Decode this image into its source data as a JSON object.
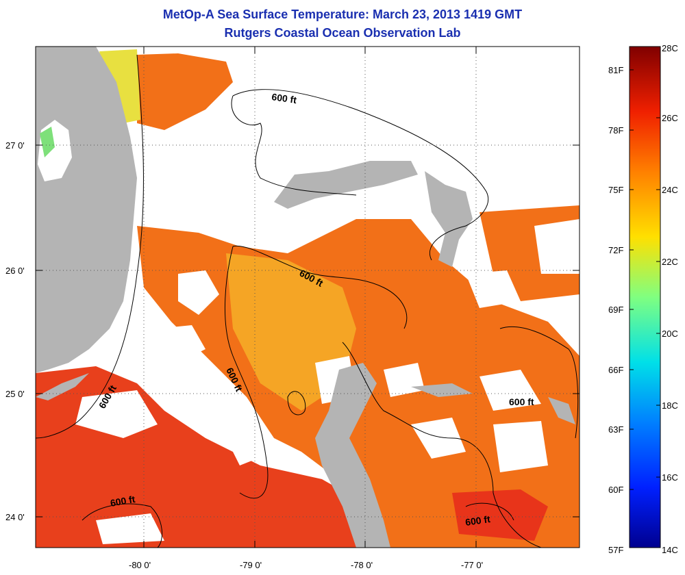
{
  "title": "MetOp-A Sea Surface Temperature:  March 23, 2013 1419 GMT",
  "subtitle": "Rutgers Coastal Ocean Observation Lab",
  "lat_ticks": [
    "27 0'",
    "26 0'",
    "25 0'",
    "24 0'"
  ],
  "lon_ticks": [
    "-80 0'",
    "-79 0'",
    "-78 0'",
    "-77 0'"
  ],
  "contour_label": "600 ft",
  "colorbar": {
    "fahrenheit_labels": [
      "81F",
      "78F",
      "75F",
      "72F",
      "69F",
      "66F",
      "63F",
      "60F",
      "57F"
    ],
    "celsius_labels": [
      "28C",
      "26C",
      "24C",
      "22C",
      "20C",
      "18C",
      "16C",
      "14C"
    ]
  },
  "colors": {
    "land": "#b4b4b4",
    "cloud": "#ffffff",
    "sst_warm": "#f06a18",
    "sst_hot": "#e8341a",
    "sst_mid": "#f5a020",
    "title_blue": "#1a2fb0"
  }
}
